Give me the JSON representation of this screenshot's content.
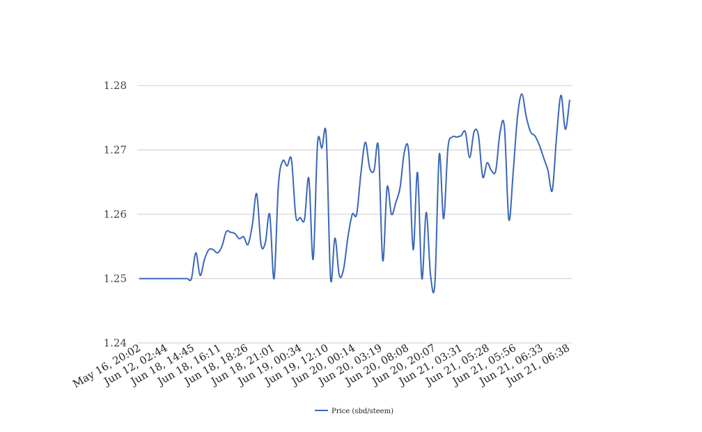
{
  "chart_data": {
    "type": "line",
    "title": "",
    "xlabel": "",
    "ylabel": "",
    "ylim": [
      1.24,
      1.28
    ],
    "yticks": [
      "1.24",
      "1.25",
      "1.26",
      "1.27",
      "1.28"
    ],
    "grid": true,
    "legend_position": "bottom",
    "x_tick_labels": [
      "May 16, 20:02",
      "Jun 12, 02:44",
      "Jun 18, 14:45",
      "Jun 18, 16:11",
      "Jun 18, 18:26",
      "Jun 18, 21:01",
      "Jun 19, 00:34",
      "Jun 19, 12:10",
      "Jun 20, 00:14",
      "Jun 20, 03:19",
      "Jun 20, 08:08",
      "Jun 20, 20:07",
      "Jun 21, 03:31",
      "Jun 21, 05:28",
      "Jun 21, 05:56",
      "Jun 21, 06:33",
      "Jun 21, 06:38"
    ],
    "series": [
      {
        "name": "Price (sbd/steem)",
        "color": "#3a66b8",
        "values": [
          1.25,
          1.25,
          1.25,
          1.25,
          1.25,
          1.25,
          1.25,
          1.25,
          1.25,
          1.25,
          1.25,
          1.25,
          1.25,
          1.254,
          1.2505,
          1.253,
          1.2545,
          1.2545,
          1.254,
          1.255,
          1.2573,
          1.2572,
          1.257,
          1.2562,
          1.2565,
          1.2553,
          1.2583,
          1.2632,
          1.2553,
          1.2556,
          1.26,
          1.25,
          1.2645,
          1.2683,
          1.2675,
          1.2685,
          1.2597,
          1.2595,
          1.2592,
          1.2656,
          1.253,
          1.271,
          1.2703,
          1.2722,
          1.25,
          1.2563,
          1.2505,
          1.2515,
          1.2565,
          1.26,
          1.26,
          1.2665,
          1.2712,
          1.2672,
          1.2668,
          1.2705,
          1.2528,
          1.2642,
          1.26,
          1.2618,
          1.2642,
          1.2698,
          1.2695,
          1.2545,
          1.2665,
          1.25,
          1.2603,
          1.2505,
          1.2493,
          1.2693,
          1.2593,
          1.2703,
          1.272,
          1.272,
          1.2722,
          1.2728,
          1.2688,
          1.2728,
          1.2723,
          1.2658,
          1.268,
          1.2668,
          1.2668,
          1.2728,
          1.2735,
          1.2592,
          1.2665,
          1.2752,
          1.2787,
          1.2752,
          1.2728,
          1.2722,
          1.2708,
          1.2688,
          1.2668,
          1.2637,
          1.2722,
          1.2785,
          1.2732,
          1.2778
        ]
      }
    ]
  }
}
